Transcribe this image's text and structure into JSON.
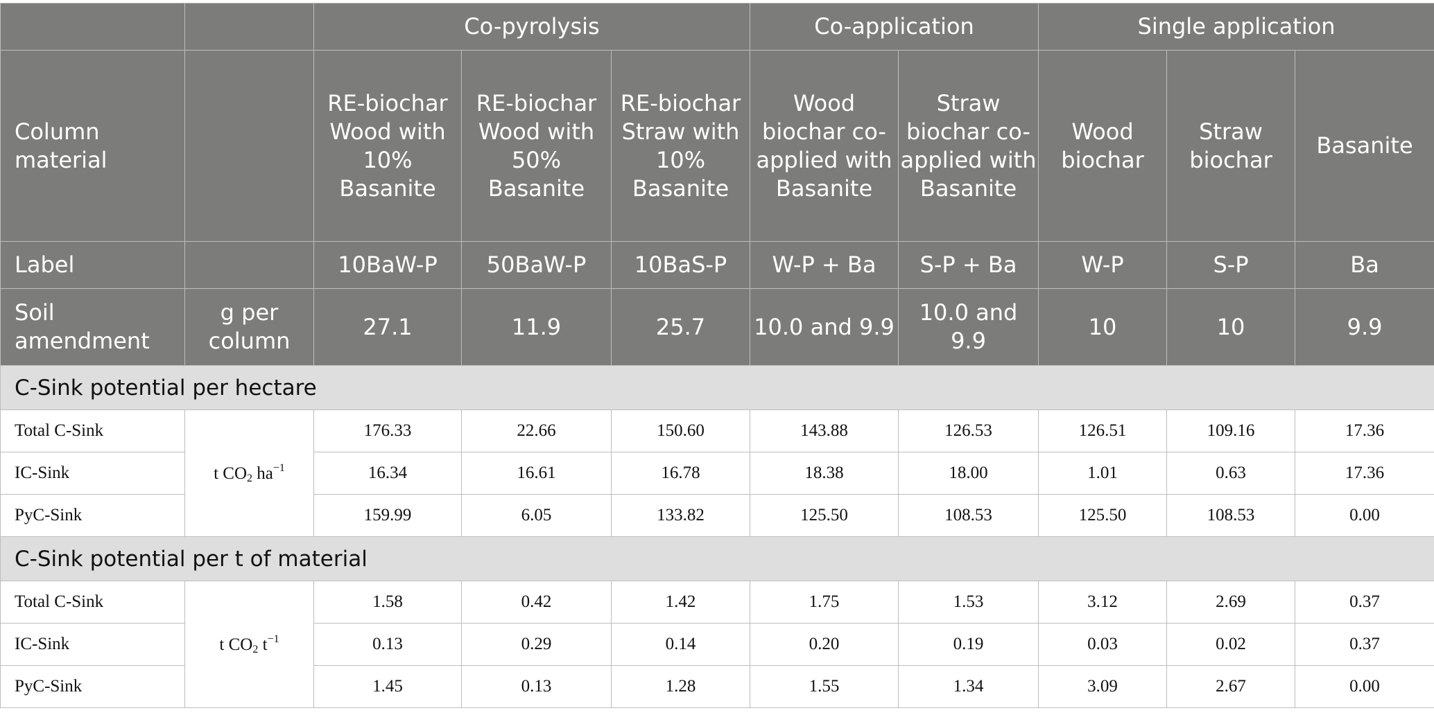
{
  "table": {
    "groups": [
      {
        "label": "Co-pyrolysis",
        "span": 3
      },
      {
        "label": "Co-application",
        "span": 2
      },
      {
        "label": "Single application",
        "span": 3
      }
    ],
    "header_row": {
      "label": "Column material",
      "columns": [
        "RE-biochar Wood with 10% Basanite",
        "RE-biochar Wood with 50% Basanite",
        "RE-biochar Straw with 10% Basanite",
        "Wood biochar co-applied with Basanite",
        "Straw biochar co-applied with Basanite",
        "Wood biochar",
        "Straw biochar",
        "Basanite"
      ]
    },
    "label_row": {
      "label": "Label",
      "values": [
        "10BaW-P",
        "50BaW-P",
        "10BaS-P",
        "W-P + Ba",
        "S-P + Ba",
        "W-P",
        "S-P",
        "Ba"
      ]
    },
    "amendment_row": {
      "label": "Soil amendment",
      "unit": "g per column",
      "values": [
        "27.1",
        "11.9",
        "25.7",
        "10.0 and 9.9",
        "10.0 and 9.9",
        "10",
        "10",
        "9.9"
      ]
    },
    "sections": [
      {
        "title": "C-Sink potential per hectare",
        "unit_base": "t CO",
        "unit_sub": "2",
        "unit_rest": " ha",
        "unit_sup": "−1",
        "rows": [
          {
            "name": "Total C-Sink",
            "values": [
              "176.33",
              "22.66",
              "150.60",
              "143.88",
              "126.53",
              "126.51",
              "109.16",
              "17.36"
            ]
          },
          {
            "name": "IC-Sink",
            "values": [
              "16.34",
              "16.61",
              "16.78",
              "18.38",
              "18.00",
              "1.01",
              "0.63",
              "17.36"
            ]
          },
          {
            "name": "PyC-Sink",
            "values": [
              "159.99",
              "6.05",
              "133.82",
              "125.50",
              "108.53",
              "125.50",
              "108.53",
              "0.00"
            ]
          }
        ]
      },
      {
        "title": "C-Sink potential per t of material",
        "unit_base": "t CO",
        "unit_sub": "2",
        "unit_rest": " t",
        "unit_sup": "−1",
        "rows": [
          {
            "name": "Total C-Sink",
            "values": [
              "1.58",
              "0.42",
              "1.42",
              "1.75",
              "1.53",
              "3.12",
              "2.69",
              "0.37"
            ]
          },
          {
            "name": "IC-Sink",
            "values": [
              "0.13",
              "0.29",
              "0.14",
              "0.20",
              "0.19",
              "0.03",
              "0.02",
              "0.37"
            ]
          },
          {
            "name": "PyC-Sink",
            "values": [
              "1.45",
              "0.13",
              "1.28",
              "1.55",
              "1.34",
              "3.09",
              "2.67",
              "0.00"
            ]
          }
        ]
      }
    ]
  }
}
